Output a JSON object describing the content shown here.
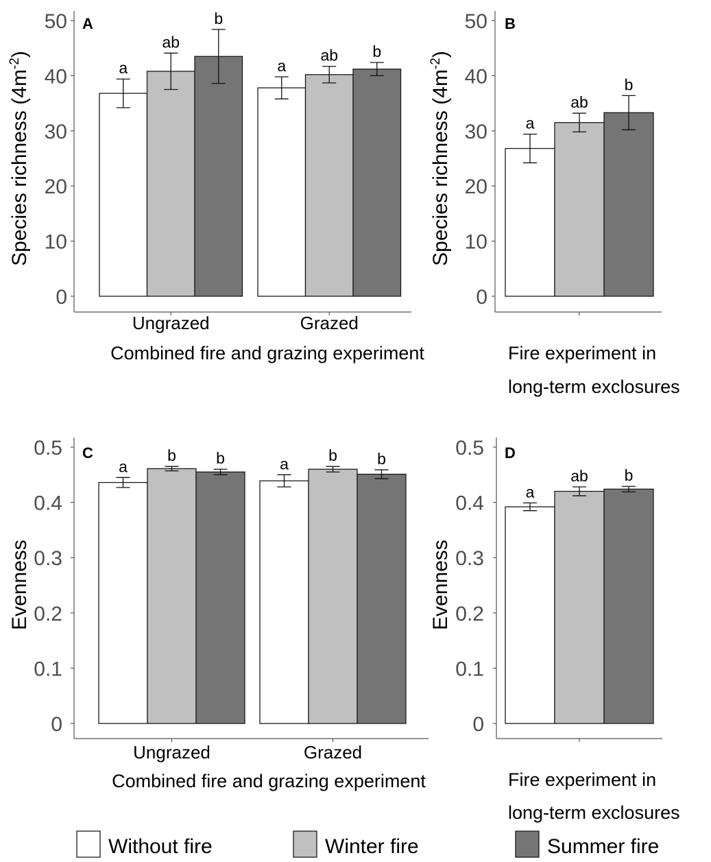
{
  "legend": [
    {
      "label": "Without fire",
      "color": "#ffffff"
    },
    {
      "label": "Winter fire",
      "color": "#c0c0c0"
    },
    {
      "label": "Summer fire",
      "color": "#757575"
    }
  ],
  "chart_data": [
    {
      "type": "bar",
      "panel": "A",
      "ylabel": "Species richness (4m",
      "ylabel_sup": "-2",
      "ylabel_end": ")",
      "xlabel": "Combined fire and grazing experiment",
      "categories": [
        "Ungrazed",
        "Grazed"
      ],
      "ylim": [
        0,
        50
      ],
      "yticks": [
        0,
        10,
        20,
        30,
        40,
        50
      ],
      "series": [
        {
          "name": "Without fire",
          "values": [
            36.8,
            37.8
          ],
          "errors": [
            2.6,
            2.0
          ],
          "letters": [
            "a",
            "a"
          ]
        },
        {
          "name": "Winter fire",
          "values": [
            40.8,
            40.2
          ],
          "errors": [
            3.3,
            1.5
          ],
          "letters": [
            "ab",
            "ab"
          ]
        },
        {
          "name": "Summer fire",
          "values": [
            43.5,
            41.2
          ],
          "errors": [
            4.9,
            1.2
          ],
          "letters": [
            "b",
            "b"
          ]
        }
      ]
    },
    {
      "type": "bar",
      "panel": "B",
      "ylabel": "Species richness (4m",
      "ylabel_sup": "-2",
      "ylabel_end": ")",
      "xlabel": [
        "Fire experiment in",
        "long-term exclosures"
      ],
      "categories": [
        ""
      ],
      "ylim": [
        0,
        50
      ],
      "yticks": [
        0,
        10,
        20,
        30,
        40,
        50
      ],
      "series": [
        {
          "name": "Without fire",
          "values": [
            26.8
          ],
          "errors": [
            2.6
          ],
          "letters": [
            "a"
          ]
        },
        {
          "name": "Winter fire",
          "values": [
            31.5
          ],
          "errors": [
            1.7
          ],
          "letters": [
            "ab"
          ]
        },
        {
          "name": "Summer fire",
          "values": [
            33.3
          ],
          "errors": [
            3.1
          ],
          "letters": [
            "b"
          ]
        }
      ]
    },
    {
      "type": "bar",
      "panel": "C",
      "ylabel": "Evenness",
      "xlabel": "Combined fire and grazing experiment",
      "categories": [
        "Ungrazed",
        "Grazed"
      ],
      "ylim": [
        0,
        0.5
      ],
      "yticks": [
        "0",
        "0.1",
        "0.2",
        "0.3",
        "0.4",
        "0.5"
      ],
      "series": [
        {
          "name": "Without fire",
          "values": [
            0.436,
            0.439
          ],
          "errors": [
            0.009,
            0.011
          ],
          "letters": [
            "a",
            "a"
          ]
        },
        {
          "name": "Winter fire",
          "values": [
            0.461,
            0.46
          ],
          "errors": [
            0.004,
            0.005
          ],
          "letters": [
            "b",
            "b"
          ]
        },
        {
          "name": "Summer fire",
          "values": [
            0.455,
            0.451
          ],
          "errors": [
            0.005,
            0.008
          ],
          "letters": [
            "b",
            "b"
          ]
        }
      ]
    },
    {
      "type": "bar",
      "panel": "D",
      "ylabel": "Evenness",
      "xlabel": [
        "Fire experiment in",
        "long-term exclosures"
      ],
      "categories": [
        ""
      ],
      "ylim": [
        0,
        0.5
      ],
      "yticks": [
        "0",
        "0.1",
        "0.2",
        "0.3",
        "0.4",
        "0.5"
      ],
      "series": [
        {
          "name": "Without fire",
          "values": [
            0.392
          ],
          "errors": [
            0.007
          ],
          "letters": [
            "a"
          ]
        },
        {
          "name": "Winter fire",
          "values": [
            0.42
          ],
          "errors": [
            0.008
          ],
          "letters": [
            "ab"
          ]
        },
        {
          "name": "Summer fire",
          "values": [
            0.424
          ],
          "errors": [
            0.005
          ],
          "letters": [
            "b"
          ]
        }
      ]
    }
  ]
}
